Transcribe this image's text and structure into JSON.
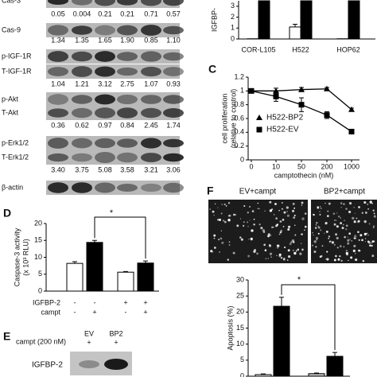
{
  "blot": {
    "groups": [
      {
        "labels": [
          "Cas-3"
        ],
        "values": [
          "0.05",
          "0.004",
          "0.21",
          "0.21",
          "0.71",
          "0.57"
        ]
      },
      {
        "labels": [
          "Cas-9"
        ],
        "values": [
          "1.34",
          "1.35",
          "1.65",
          "1.90",
          "0.85",
          "1.10"
        ]
      },
      {
        "labels": [
          "p-IGF-1R",
          "T-IGF-1R"
        ],
        "values": [
          "1.04",
          "1.21",
          "3.12",
          "2.75",
          "1.07",
          "0.93"
        ]
      },
      {
        "labels": [
          "p-Akt",
          "T-Akt"
        ],
        "values": [
          "0.36",
          "0.62",
          "0.97",
          "0.84",
          "2.45",
          "1.74"
        ]
      },
      {
        "labels": [
          "p-Erk1/2",
          "T-Erk1/2"
        ],
        "values": [
          "3.40",
          "3.75",
          "5.08",
          "3.58",
          "3.21",
          "3.06"
        ]
      },
      {
        "labels": [
          "β-actin"
        ]
      }
    ]
  },
  "chart_data": [
    {
      "type": "bar",
      "y_label": "IGFBP-",
      "categories": [
        "COR-L105",
        "H522",
        "HOP62"
      ],
      "series": [
        {
          "color": "#ffffff",
          "values": [
            0.02,
            1.1,
            0.02
          ],
          "errors": [
            0,
            0.25,
            0
          ]
        },
        {
          "color": "#000000",
          "values": [
            3.5,
            3.5,
            3.5
          ]
        }
      ],
      "ylim": [
        0,
        3.5
      ],
      "yticks": [
        0,
        1,
        2,
        3
      ]
    },
    {
      "type": "line",
      "panel": "C",
      "y_label": [
        "cell proliferation",
        "(relative to control)"
      ],
      "x_label": "camptothecin (nM)",
      "categories": [
        "0",
        "10",
        "50",
        "200",
        "1000"
      ],
      "series": [
        {
          "name": "H522-BP2",
          "marker": "triangle",
          "color": "#000000",
          "values": [
            1,
            1.0,
            1.02,
            1.03,
            0.73
          ],
          "errors": [
            0,
            0.04,
            0.03,
            0.02,
            0.02
          ]
        },
        {
          "name": "H522-EV",
          "marker": "square",
          "color": "#000000",
          "values": [
            1,
            0.92,
            0.8,
            0.65,
            0.41
          ],
          "errors": [
            0,
            0.07,
            0.1,
            0.05,
            0.01
          ]
        }
      ],
      "ylim": [
        0,
        1.2
      ],
      "yticks": [
        0,
        0.2,
        0.4,
        0.6,
        0.8,
        1,
        1.2
      ],
      "legend": "center-left"
    },
    {
      "type": "bar",
      "panel": "D",
      "y_label": [
        "Caspase-3 activity",
        "(x 10³ RLU)"
      ],
      "categories": [
        null,
        null,
        null,
        null
      ],
      "values": [
        8.2,
        14.4,
        5.6,
        8.3
      ],
      "errors": [
        0.5,
        0.6,
        0.2,
        0.6
      ],
      "colors": [
        "#ffffff",
        "#000000",
        "#ffffff",
        "#000000"
      ],
      "conditions": [
        {
          "label": "IGFBP-2",
          "signs": [
            "-",
            "-",
            "+",
            "+"
          ]
        },
        {
          "label": "campt",
          "signs": [
            "-",
            "+",
            "-",
            "+"
          ]
        }
      ],
      "annotation": "*",
      "ylim": [
        0,
        20
      ],
      "yticks": [
        0,
        5,
        10,
        15,
        20
      ]
    },
    {
      "type": "bar",
      "y_label": "Apoptosis (%)",
      "categories": [
        null,
        null,
        null,
        null
      ],
      "values": [
        0.5,
        21.8,
        0.8,
        6.2
      ],
      "errors": [
        0.2,
        2.8,
        0.2,
        1.2
      ],
      "colors": [
        "#ffffff",
        "#000000",
        "#bbbbbb",
        "#000000"
      ],
      "annotation": "*",
      "ylim": [
        0,
        30
      ],
      "yticks": [
        0,
        5,
        10,
        15,
        20,
        25,
        30
      ]
    }
  ],
  "panel_e": {
    "label": "E",
    "treatment": "campt (200 nM)",
    "lanes": [
      {
        "name": "EV",
        "sign": "+"
      },
      {
        "name": "BP2",
        "sign": "+"
      }
    ],
    "blot_label": "IGFBP-2"
  },
  "panel_f": {
    "label": "F",
    "images": [
      "EV+campt",
      "BP2+campt"
    ]
  }
}
